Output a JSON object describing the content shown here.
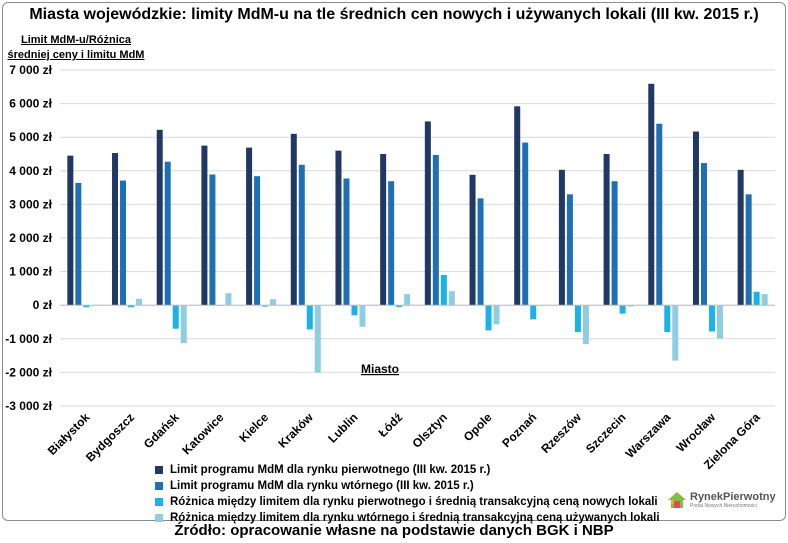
{
  "chart_data": {
    "type": "bar",
    "title": "Miasta wojewódzkie: limity MdM-u na tle średnich cen nowych i używanych lokali (III kw. 2015 r.)",
    "ylabel": "Limit MdM-u/Różnica średniej ceny i limitu MdM",
    "xlabel": "Miasto",
    "ylim": [
      -3000,
      7000
    ],
    "yticks": [
      7000,
      6000,
      5000,
      4000,
      3000,
      2000,
      1000,
      0,
      -1000,
      -2000,
      -3000
    ],
    "ytick_labels": [
      "7 000 zł",
      "6 000 zł",
      "5 000 zł",
      "4 000 zł",
      "3 000 zł",
      "2 000 zł",
      "1 000 zł",
      "0 zł",
      "-1 000 zł",
      "-2 000 zł",
      "-3 000 zł"
    ],
    "grid": true,
    "categories": [
      "Białystok",
      "Bydgoszcz",
      "Gdańsk",
      "Katowice",
      "Kielce",
      "Kraków",
      "Lublin",
      "Łódź",
      "Olsztyn",
      "Opole",
      "Poznań",
      "Rzeszów",
      "Szczecin",
      "Warszawa",
      "Wrocław",
      "Zielona Góra"
    ],
    "series": [
      {
        "name": "Limit programu MdM dla rynku pierwotnego (III kw. 2015 r.)",
        "color": "#1f3864",
        "values": [
          4450,
          4530,
          5220,
          4750,
          4690,
          5100,
          4600,
          4500,
          5470,
          3880,
          5920,
          4030,
          4500,
          6590,
          5170,
          4030
        ]
      },
      {
        "name": "Limit programu MdM dla rynku wtórnego (III kw. 2015 r.)",
        "color": "#1f6fb5",
        "values": [
          3640,
          3710,
          4270,
          3890,
          3840,
          4180,
          3770,
          3690,
          4470,
          3180,
          4840,
          3300,
          3690,
          5400,
          4230,
          3300
        ]
      },
      {
        "name": "Różnica między limitem dla rynku pierwotnego i średnią transakcyjną ceną nowych lokali",
        "color": "#1ab2e8",
        "values": [
          -60,
          -60,
          -700,
          -20,
          -40,
          -720,
          -300,
          -50,
          900,
          -750,
          -420,
          -800,
          -250,
          -800,
          -780,
          400
        ]
      },
      {
        "name": "Różnica między limitem dla rynku wtórnego i średnią transakcyjną ceną używanych lokali",
        "color": "#8fcde3",
        "values": [
          0,
          190,
          -1130,
          360,
          180,
          -2010,
          -640,
          330,
          420,
          -570,
          -20,
          -1160,
          -40,
          -1650,
          -990,
          330
        ]
      }
    ]
  },
  "source": "Źródło: opracowanie własne na podstawie danych BGK i NBP",
  "logo": {
    "name": "RynekPierwotny",
    "tagline": "Portal Nowych Nieruchomości"
  }
}
